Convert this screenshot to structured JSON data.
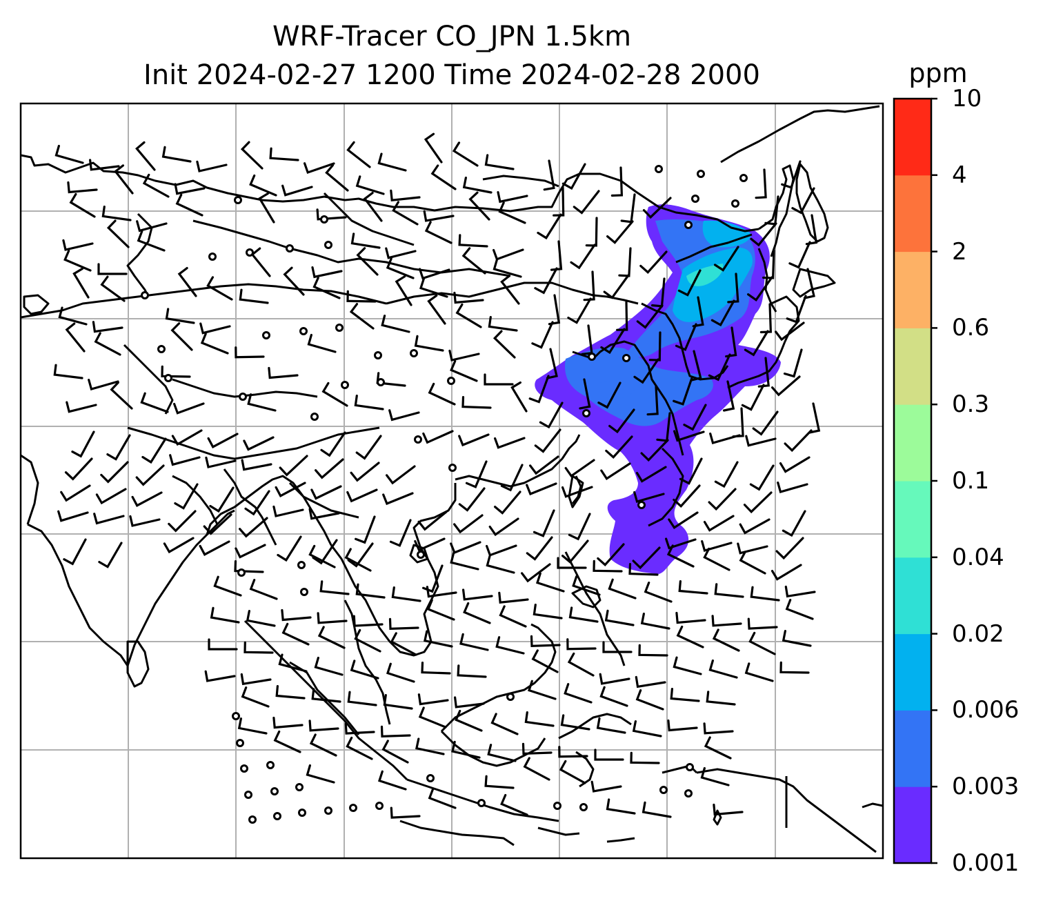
{
  "title": {
    "line1": "WRF-Tracer CO_JPN 1.5km",
    "line2": "Init 2024-02-27 1200 Time 2024-02-28 2000"
  },
  "colorbar": {
    "unit": "ppm",
    "levels": [
      "0.001",
      "0.003",
      "0.006",
      "0.02",
      "0.04",
      "0.1",
      "0.3",
      "0.6",
      "2",
      "4",
      "10"
    ],
    "colors": [
      "#6a2cff",
      "#3374f5",
      "#02b1ef",
      "#2fe0d5",
      "#66f9bb",
      "#9cfb9a",
      "#d2df86",
      "#fdb165",
      "#fd733b",
      "#ff2a17"
    ]
  },
  "map": {
    "type": "filled-contour-map with wind barbs",
    "gridlines": true,
    "coastlines": true,
    "plume_colors": {
      "main": "#6a2cff",
      "mid": "#3374f5",
      "core": "#02b1ef",
      "peak": "#2fe0d5"
    }
  }
}
